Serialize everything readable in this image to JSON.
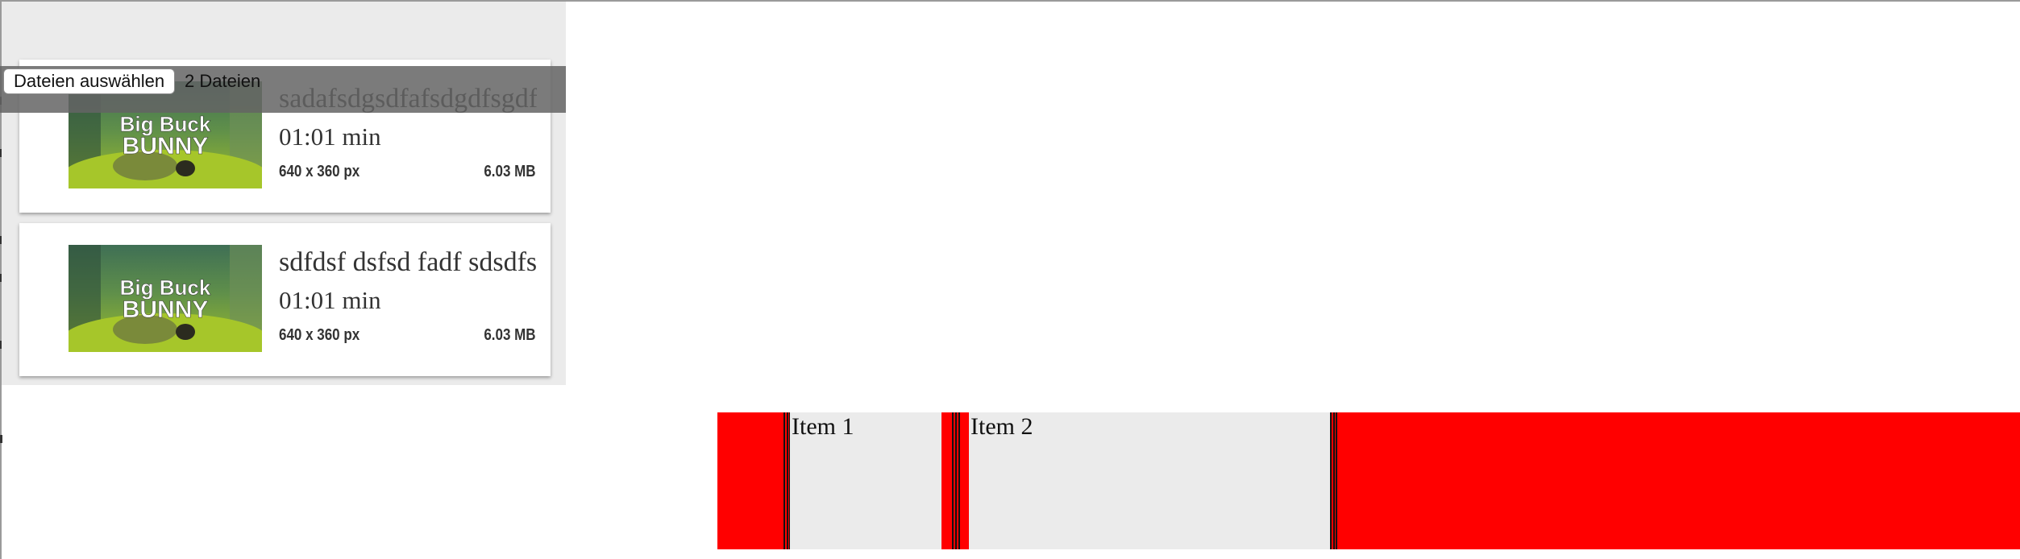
{
  "file_input": {
    "button_label": "Dateien auswählen",
    "count_label": "2 Dateien"
  },
  "videos": [
    {
      "title": "sadafsdgsdfafsdgdfsgdfsg",
      "duration": "01:01 min",
      "dimensions": "640 x 360 px",
      "size": "6.03 MB",
      "thumbnail_text_line1": "Big Buck",
      "thumbnail_text_line2": "BUNNY"
    },
    {
      "title": "sdfdsf dsfsd fadf sdsdfs",
      "duration": "01:01 min",
      "dimensions": "640 x 360 px",
      "size": "6.03 MB",
      "thumbnail_text_line1": "Big Buck",
      "thumbnail_text_line2": "BUNNY"
    }
  ],
  "flex_items": [
    {
      "label": "Item 1"
    },
    {
      "label": "Item 2"
    }
  ],
  "colors": {
    "panel_bg": "#ebebeb",
    "flex_bg": "#ff0000",
    "item_bg": "#ebebeb",
    "text": "#333333"
  }
}
